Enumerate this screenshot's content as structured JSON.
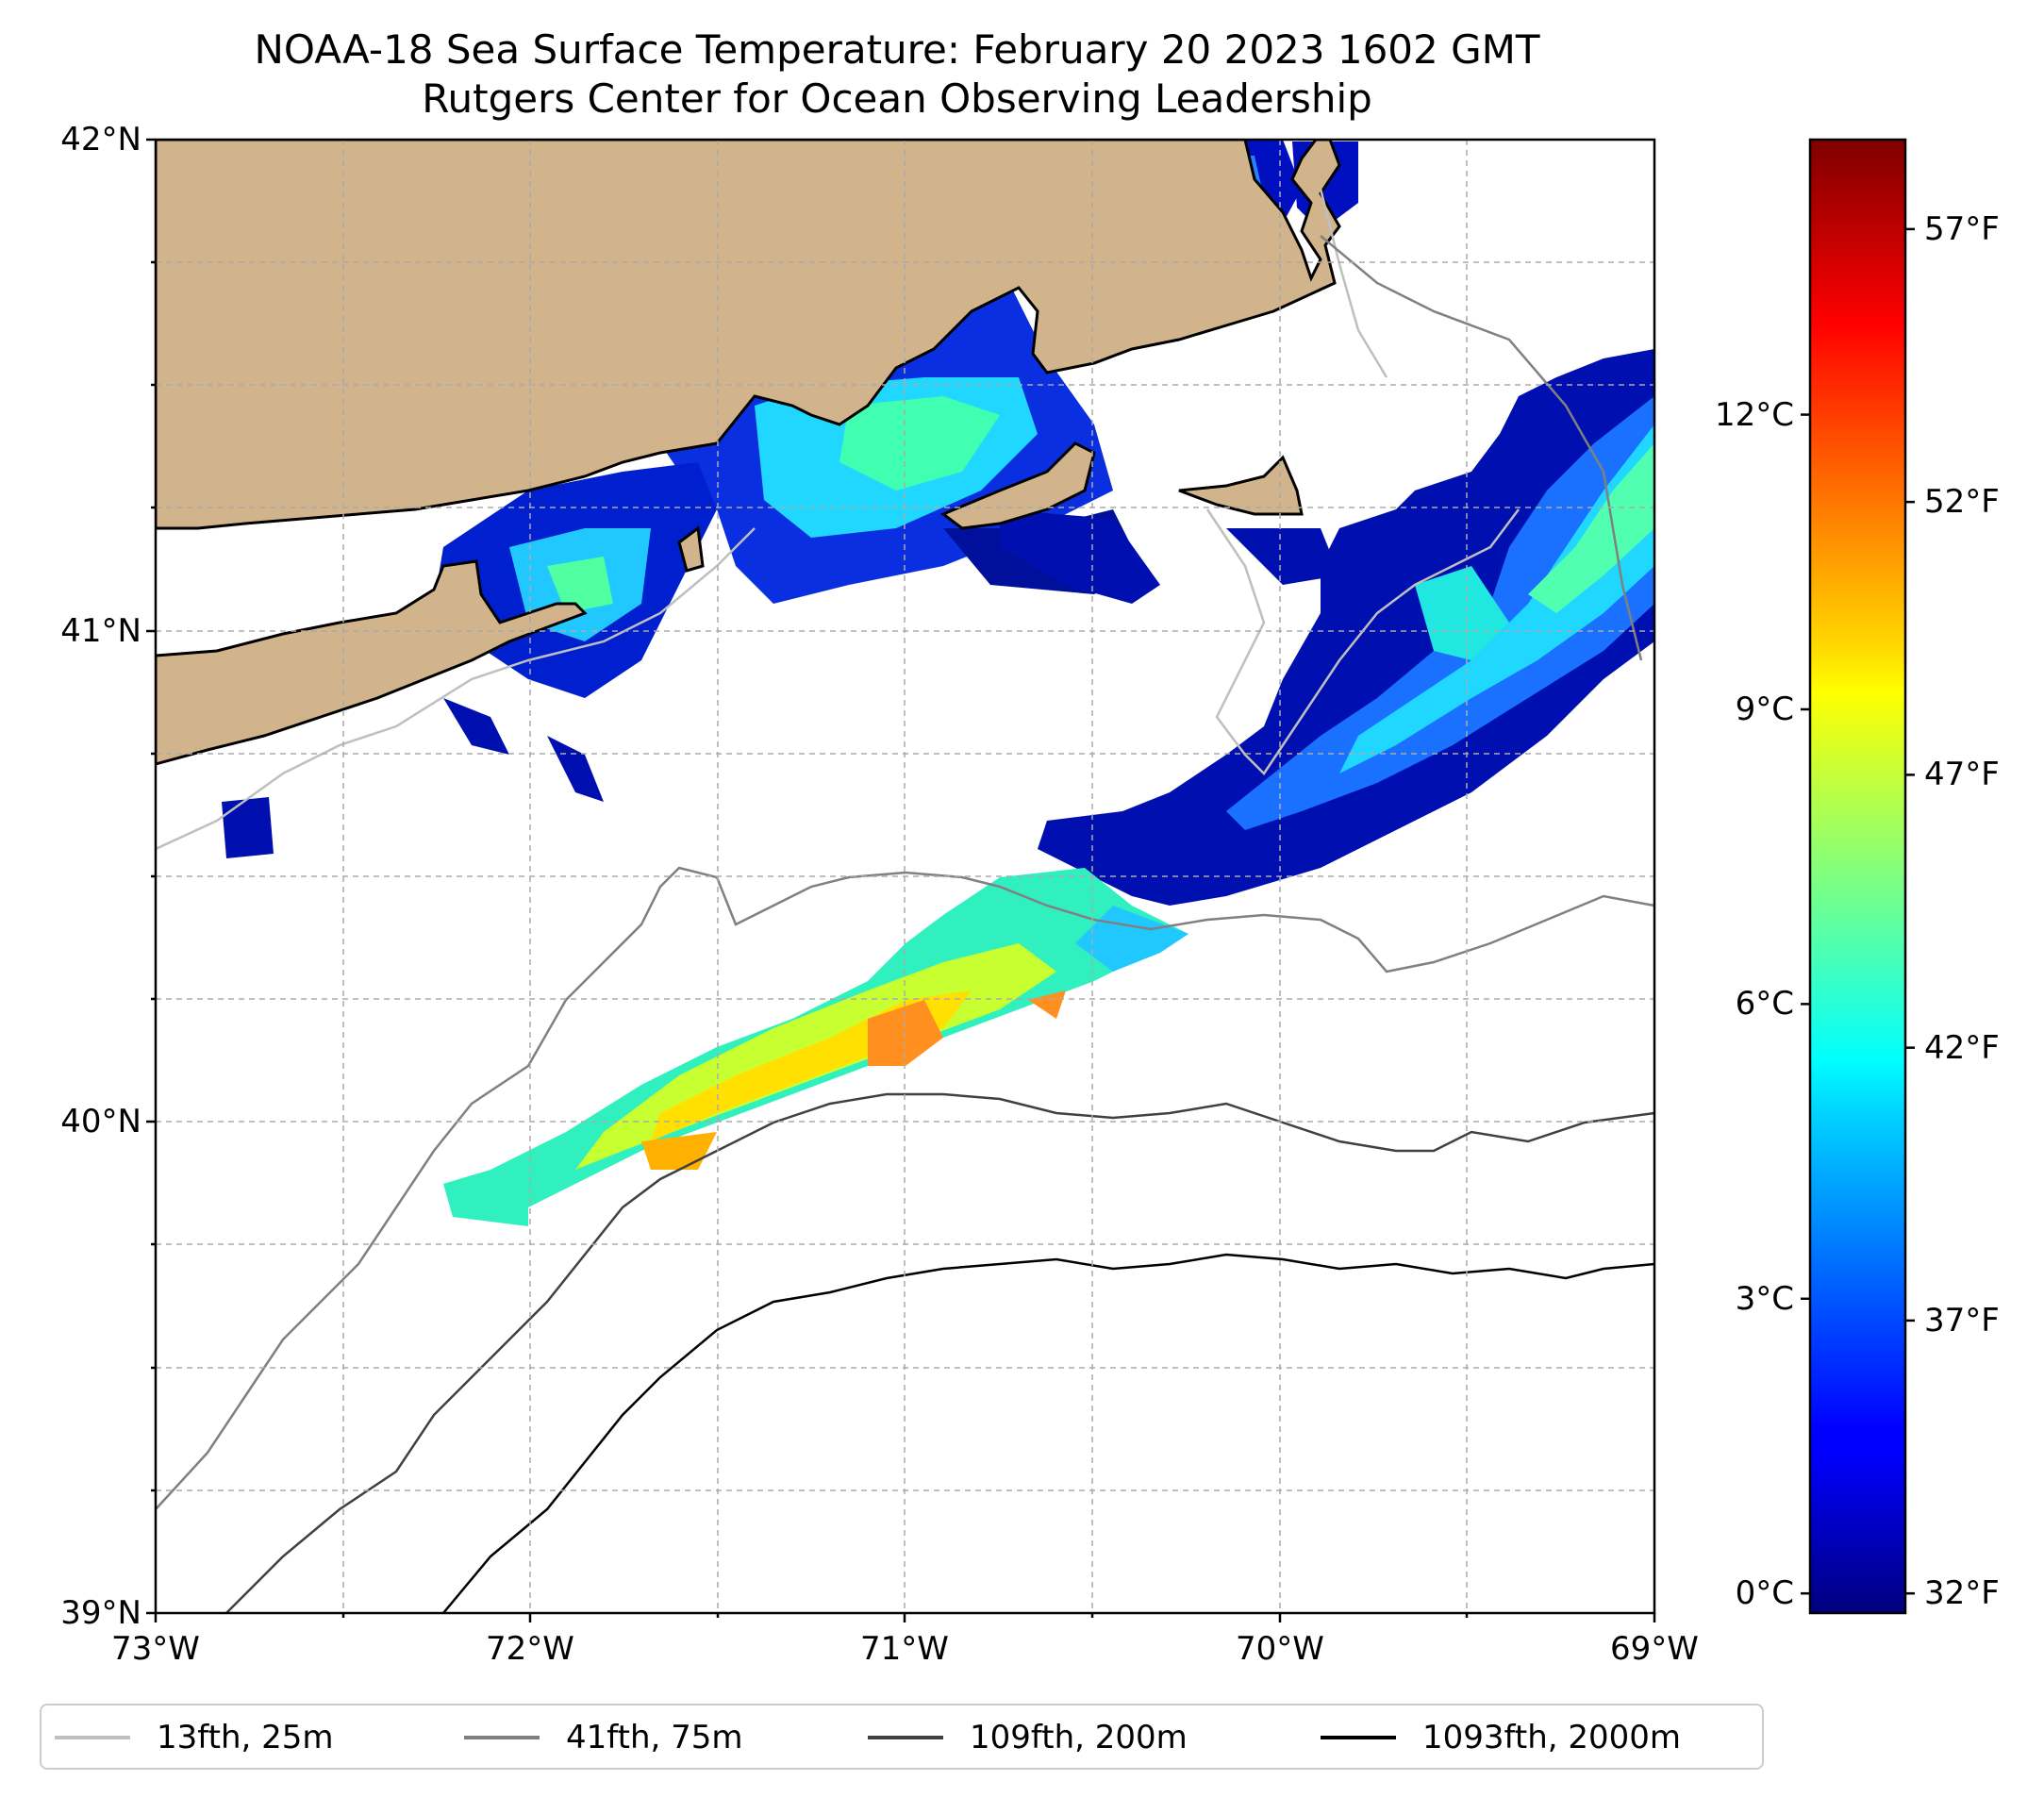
{
  "title": "NOAA-18 Sea Surface Temperature: February 20 2023 1602 GMT",
  "subtitle": "Rutgers Center for Ocean Observing Leadership",
  "map": {
    "lat_range": [
      39,
      42
    ],
    "lon_range": [
      -73,
      -69
    ],
    "lat_ticks": [
      {
        "value": 42,
        "label": "42°N"
      },
      {
        "value": 41,
        "label": "41°N"
      },
      {
        "value": 40,
        "label": "40°N"
      },
      {
        "value": 39,
        "label": "39°N"
      }
    ],
    "lon_ticks": [
      {
        "value": -73,
        "label": "73°W"
      },
      {
        "value": -72,
        "label": "72°W"
      },
      {
        "value": -71,
        "label": "71°W"
      },
      {
        "value": -70,
        "label": "70°W"
      },
      {
        "value": -69,
        "label": "69°W"
      }
    ],
    "land_color": "#d2b48c",
    "grid": "dashed"
  },
  "colorbar": {
    "colormap": "jet",
    "range_c": [
      -0.2,
      14.8
    ],
    "celsius_ticks": [
      {
        "value": 0,
        "label": "0°C"
      },
      {
        "value": 3,
        "label": "3°C"
      },
      {
        "value": 6,
        "label": "6°C"
      },
      {
        "value": 9,
        "label": "9°C"
      },
      {
        "value": 12,
        "label": "12°C"
      }
    ],
    "fahrenheit_ticks": [
      {
        "value": 32,
        "label": "32°F"
      },
      {
        "value": 37,
        "label": "37°F"
      },
      {
        "value": 42,
        "label": "42°F"
      },
      {
        "value": 47,
        "label": "47°F"
      },
      {
        "value": 52,
        "label": "52°F"
      },
      {
        "value": 57,
        "label": "57°F"
      }
    ]
  },
  "legend": [
    {
      "label": "13fth, 25m",
      "color": "#bfbfbf"
    },
    {
      "label": "41fth, 75m",
      "color": "#808080"
    },
    {
      "label": "109fth, 200m",
      "color": "#404040"
    },
    {
      "label": "1093fth, 2000m",
      "color": "#000000"
    }
  ]
}
